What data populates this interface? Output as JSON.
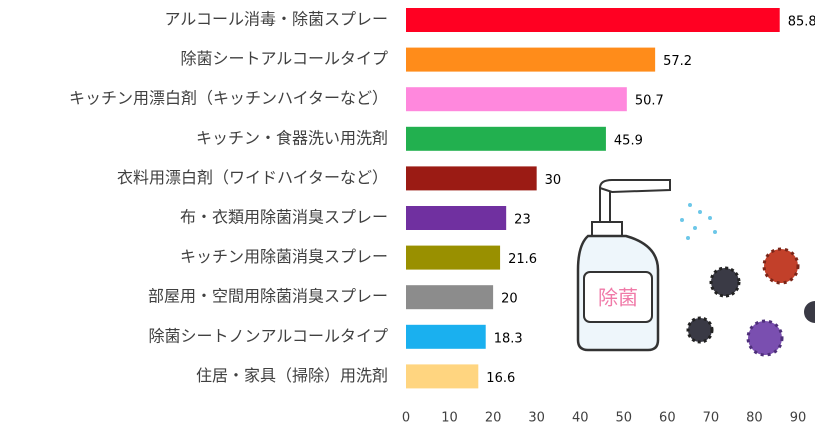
{
  "chart_data": {
    "type": "bar",
    "orientation": "horizontal",
    "categories": [
      "アルコール消毒・除菌スプレー",
      "除菌シートアルコールタイプ",
      "キッチン用漂白剤（キッチンハイターなど）",
      "キッチン・食器洗い用洗剤",
      "衣料用漂白剤（ワイドハイターなど）",
      "布・衣類用除菌消臭スプレー",
      "キッチン用除菌消臭スプレー",
      "部屋用・空間用除菌消臭スプレー",
      "除菌シートノンアルコールタイプ",
      "住居・家具（掃除）用洗剤"
    ],
    "values": [
      85.8,
      57.2,
      50.7,
      45.9,
      30,
      23,
      21.6,
      20,
      18.3,
      16.6
    ],
    "colors": [
      "#ff0022",
      "#ff8c1a",
      "#ff88dd",
      "#22b04f",
      "#9b1b14",
      "#7030a0",
      "#999000",
      "#8c8c8c",
      "#1ab0ef",
      "#ffd580"
    ],
    "xlim": [
      0,
      90
    ],
    "xticks": [
      0,
      10,
      20,
      30,
      40,
      50,
      60,
      70,
      80,
      90
    ],
    "annotation": "除菌"
  }
}
